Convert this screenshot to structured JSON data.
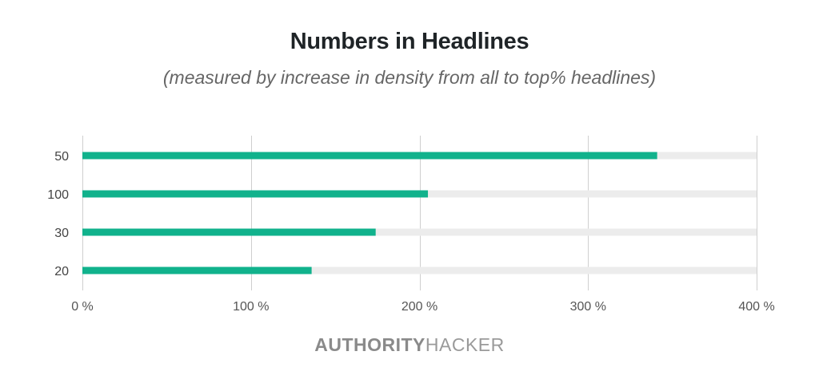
{
  "chart_data": {
    "type": "bar",
    "orientation": "horizontal",
    "title": "Numbers in Headlines",
    "subtitle": "(measured by increase in density from all to top% headlines)",
    "categories": [
      "50",
      "100",
      "30",
      "20"
    ],
    "values": [
      341,
      205,
      174,
      136
    ],
    "xlim": [
      0,
      400
    ],
    "xticks": [
      0,
      100,
      200,
      300,
      400
    ],
    "xtick_labels": [
      "0 %",
      "100 %",
      "200 %",
      "300 %",
      "400 %"
    ],
    "grid": true,
    "bar_color": "#11b28c",
    "track_color": "#ececec",
    "grid_color": "#cfcfcf"
  },
  "brand": {
    "part1": "AUTHORITY",
    "part2": "HACKER",
    "color1": "#8a8a8a",
    "color2": "#9a9a9a"
  }
}
